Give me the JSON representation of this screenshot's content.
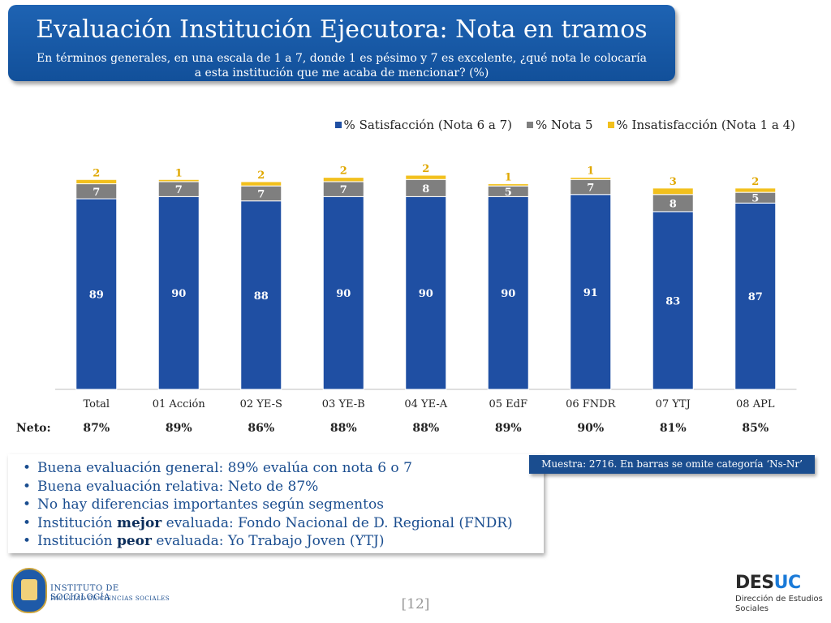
{
  "title": "Evaluación Institución Ejecutora: Nota en tramos",
  "subtitle": "En términos generales, en una escala de 1 a 7, donde 1 es pésimo y 7 es excelente, ¿qué nota le colocaría a esta institución que me acaba de mencionar? (%)",
  "colors": {
    "satisfaccion": "#1f4fa3",
    "nota5": "#7f7f7f",
    "insatisfaccion": "#f2c01d",
    "title_bg": "#1660ad"
  },
  "chart_data": {
    "type": "bar",
    "stacked": true,
    "categories": [
      "Total",
      "01 Acción",
      "02 YE-S",
      "03 YE-B",
      "04 YE-A",
      "05 EdF",
      "06 FNDR",
      "07 YTJ",
      "08 APL"
    ],
    "series": [
      {
        "name": "% Satisfacción (Nota 6 a 7)",
        "values": [
          89,
          90,
          88,
          90,
          90,
          90,
          91,
          83,
          87
        ]
      },
      {
        "name": "% Nota 5",
        "values": [
          7,
          7,
          7,
          7,
          8,
          5,
          7,
          8,
          5
        ]
      },
      {
        "name": "% Insatisfacción (Nota 1 a 4)",
        "values": [
          2,
          1,
          2,
          2,
          2,
          1,
          1,
          3,
          2
        ]
      }
    ],
    "ylim": [
      0,
      100
    ],
    "legend": "top-right",
    "neto_label": "Neto:",
    "neto": [
      "87%",
      "89%",
      "86%",
      "88%",
      "88%",
      "89%",
      "90%",
      "81%",
      "85%"
    ]
  },
  "sample_note": "Muestra: 2716. En barras se omite categoría ‘Ns-Nr’",
  "bullets": [
    {
      "pre": "Buena evaluación general: 89% evalúa con nota 6 o 7",
      "bold": "",
      "post": ""
    },
    {
      "pre": "Buena evaluación relativa: Neto de 87%",
      "bold": "",
      "post": ""
    },
    {
      "pre": "No hay diferencias importantes según segmentos",
      "bold": "",
      "post": ""
    },
    {
      "pre": "Institución ",
      "bold": "mejor",
      "post": " evaluada: Fondo Nacional de D. Regional (FNDR)"
    },
    {
      "pre": "Institución ",
      "bold": "peor",
      "post": " evaluada: Yo Trabajo Joven (YTJ)"
    }
  ],
  "logo_left": {
    "line1": "INSTITUTO DE SOCIOLOGÍA",
    "line2": "FACULTAD DE CIENCIAS SOCIALES"
  },
  "logo_right": {
    "brand_a": "DES",
    "brand_b": "UC",
    "line1": "Dirección de Estudios",
    "line2": "Sociales"
  },
  "page_number": "[12]"
}
